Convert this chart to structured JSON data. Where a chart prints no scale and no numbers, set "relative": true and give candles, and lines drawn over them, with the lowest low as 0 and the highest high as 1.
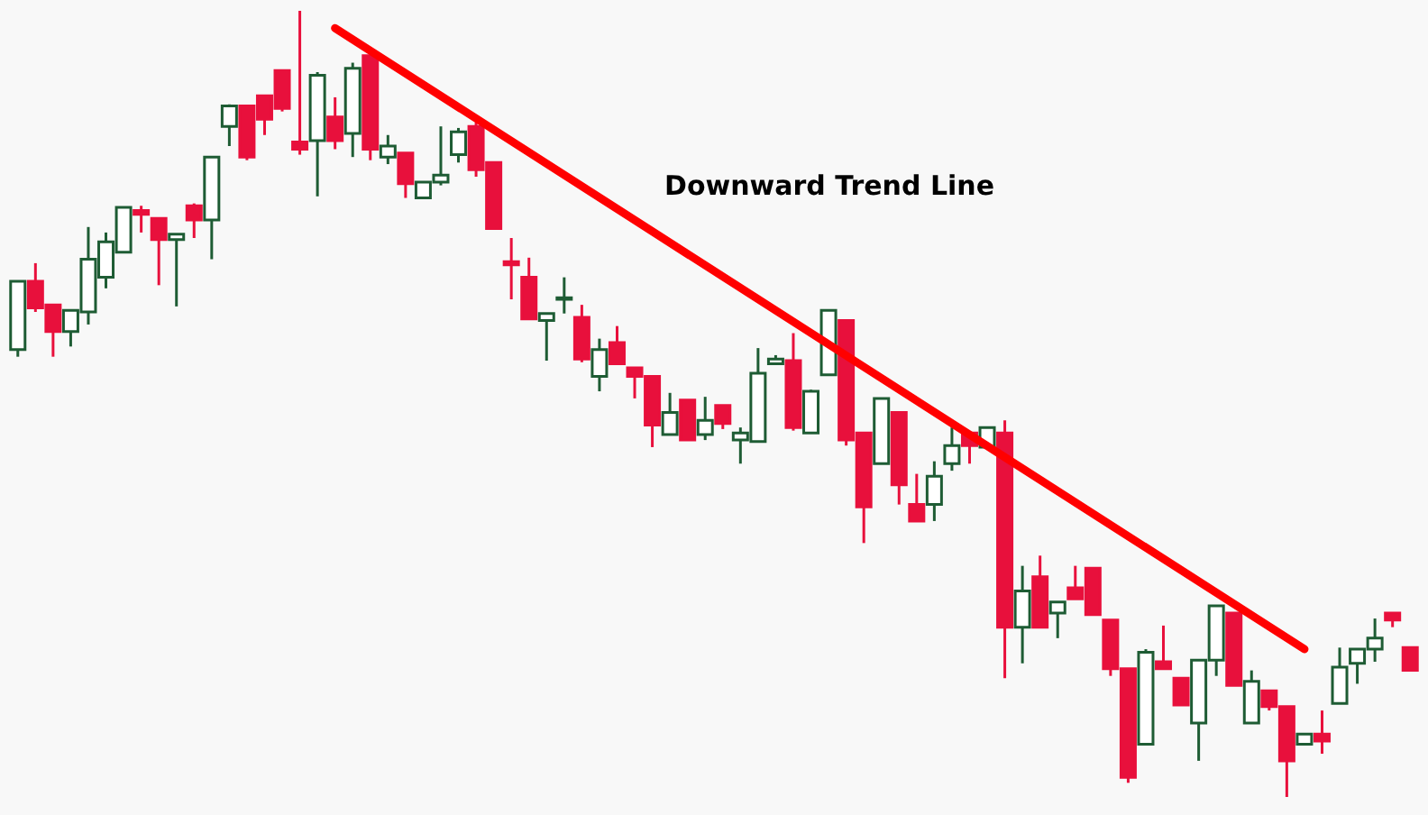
{
  "chart_data": {
    "type": "candlestick",
    "relative": true,
    "categories": [
      null,
      null,
      null,
      null,
      null,
      null,
      null,
      null,
      null,
      null,
      null,
      null,
      null,
      null,
      null,
      null,
      null,
      null,
      null,
      null,
      null,
      null,
      null,
      null,
      null,
      null,
      null,
      null,
      null,
      null,
      null,
      null,
      null,
      null,
      null,
      null,
      null,
      null,
      null,
      null,
      null,
      null,
      null,
      null,
      null,
      null,
      null,
      null,
      null,
      null,
      null,
      null,
      null,
      null,
      null,
      null,
      null,
      null,
      null,
      null,
      null,
      null,
      null,
      null,
      null,
      null,
      null,
      null,
      null,
      null,
      null,
      null,
      null,
      null,
      null,
      null,
      null,
      null,
      null,
      null
    ],
    "ohlc": [
      [
        0.569,
        0.656,
        0.56,
        0.656
      ],
      [
        0.656,
        0.679,
        0.617,
        0.622
      ],
      [
        0.626,
        0.626,
        0.56,
        0.592
      ],
      [
        0.592,
        0.619,
        0.573,
        0.619
      ],
      [
        0.617,
        0.725,
        0.601,
        0.684
      ],
      [
        0.661,
        0.718,
        0.647,
        0.706
      ],
      [
        0.693,
        0.75,
        0.693,
        0.75
      ],
      [
        0.746,
        0.752,
        0.718,
        0.741
      ],
      [
        0.736,
        0.736,
        0.651,
        0.709
      ],
      [
        0.709,
        0.716,
        0.624,
        0.716
      ],
      [
        0.752,
        0.755,
        0.711,
        0.734
      ],
      [
        0.734,
        0.814,
        0.684,
        0.814
      ],
      [
        0.853,
        0.881,
        0.828,
        0.879
      ],
      [
        0.879,
        0.879,
        0.81,
        0.814
      ],
      [
        0.892,
        0.892,
        0.842,
        0.862
      ],
      [
        0.924,
        0.924,
        0.872,
        0.876
      ],
      [
        0.833,
        1.0,
        0.817,
        0.824
      ],
      [
        0.835,
        0.922,
        0.764,
        0.918
      ],
      [
        0.865,
        0.89,
        0.824,
        0.835
      ],
      [
        0.844,
        0.934,
        0.814,
        0.927
      ],
      [
        0.943,
        0.943,
        0.81,
        0.824
      ],
      [
        0.814,
        0.842,
        0.805,
        0.828
      ],
      [
        0.819,
        0.819,
        0.762,
        0.78
      ],
      [
        0.762,
        0.782,
        0.762,
        0.782
      ],
      [
        0.782,
        0.853,
        0.778,
        0.791
      ],
      [
        0.817,
        0.851,
        0.807,
        0.846
      ],
      [
        0.853,
        0.858,
        0.789,
        0.798
      ],
      [
        0.807,
        0.807,
        0.723,
        0.723
      ],
      [
        0.681,
        0.711,
        0.633,
        0.677
      ],
      [
        0.661,
        0.686,
        0.608,
        0.608
      ],
      [
        0.606,
        0.615,
        0.555,
        0.615
      ],
      [
        0.633,
        0.661,
        0.615,
        0.635
      ],
      [
        0.61,
        0.626,
        0.553,
        0.557
      ],
      [
        0.535,
        0.583,
        0.516,
        0.569
      ],
      [
        0.578,
        0.599,
        0.551,
        0.551
      ],
      [
        0.546,
        0.546,
        0.507,
        0.535
      ],
      [
        0.535,
        0.535,
        0.445,
        0.473
      ],
      [
        0.461,
        0.514,
        0.461,
        0.489
      ],
      [
        0.505,
        0.505,
        0.454,
        0.454
      ],
      [
        0.461,
        0.509,
        0.454,
        0.479
      ],
      [
        0.498,
        0.498,
        0.468,
        0.475
      ],
      [
        0.454,
        0.47,
        0.424,
        0.463
      ],
      [
        0.452,
        0.571,
        0.452,
        0.539
      ],
      [
        0.551,
        0.562,
        0.551,
        0.557
      ],
      [
        0.555,
        0.59,
        0.466,
        0.47
      ],
      [
        0.463,
        0.518,
        0.463,
        0.516
      ],
      [
        0.537,
        0.619,
        0.537,
        0.619
      ],
      [
        0.606,
        0.606,
        0.447,
        0.454
      ],
      [
        0.463,
        0.463,
        0.323,
        0.369
      ],
      [
        0.424,
        0.507,
        0.424,
        0.507
      ],
      [
        0.489,
        0.489,
        0.372,
        0.397
      ],
      [
        0.372,
        0.411,
        0.351,
        0.351
      ],
      [
        0.372,
        0.427,
        0.351,
        0.408
      ],
      [
        0.424,
        0.47,
        0.415,
        0.447
      ],
      [
        0.463,
        0.463,
        0.424,
        0.447
      ],
      [
        0.445,
        0.47,
        0.445,
        0.47
      ],
      [
        0.463,
        0.479,
        0.151,
        0.216
      ],
      [
        0.216,
        0.294,
        0.17,
        0.262
      ],
      [
        0.28,
        0.307,
        0.216,
        0.216
      ],
      [
        0.234,
        0.248,
        0.202,
        0.248
      ],
      [
        0.266,
        0.294,
        0.252,
        0.252
      ],
      [
        0.291,
        0.291,
        0.232,
        0.232
      ],
      [
        0.225,
        0.225,
        0.154,
        0.163
      ],
      [
        0.163,
        0.163,
        0.018,
        0.025
      ],
      [
        0.067,
        0.188,
        0.067,
        0.184
      ],
      [
        0.172,
        0.218,
        0.163,
        0.163
      ],
      [
        0.151,
        0.151,
        0.117,
        0.117
      ],
      [
        0.094,
        0.174,
        0.046,
        0.174
      ],
      [
        0.174,
        0.243,
        0.154,
        0.243
      ],
      [
        0.234,
        0.234,
        0.142,
        0.142
      ],
      [
        0.094,
        0.161,
        0.094,
        0.147
      ],
      [
        0.135,
        0.135,
        0.11,
        0.115
      ],
      [
        0.115,
        0.115,
        0.0,
        0.046
      ],
      [
        0.067,
        0.08,
        0.067,
        0.08
      ],
      [
        0.08,
        0.11,
        0.055,
        0.071
      ],
      [
        0.119,
        0.19,
        0.119,
        0.165
      ],
      [
        0.17,
        0.188,
        0.144,
        0.188
      ],
      [
        0.188,
        0.227,
        0.172,
        0.202
      ],
      [
        0.234,
        0.234,
        0.216,
        0.225
      ],
      [
        0.19,
        0.19,
        0.161,
        0.161
      ]
    ],
    "colors": [
      "#1e5c34",
      "#e8103c",
      "#e8103c",
      "#1e5c34",
      "#1e5c34",
      "#1e5c34",
      "#1e5c34",
      "#e8103c",
      "#e8103c",
      "#1e5c34",
      "#e8103c",
      "#1e5c34",
      "#1e5c34",
      "#e8103c",
      "#e8103c",
      "#e8103c",
      "#e8103c",
      "#1e5c34",
      "#e8103c",
      "#1e5c34",
      "#e8103c",
      "#1e5c34",
      "#e8103c",
      "#1e5c34",
      "#1e5c34",
      "#1e5c34",
      "#e8103c",
      "#e8103c",
      "#e8103c",
      "#e8103c",
      "#1e5c34",
      "#1e5c34",
      "#e8103c",
      "#1e5c34",
      "#e8103c",
      "#e8103c",
      "#e8103c",
      "#1e5c34",
      "#e8103c",
      "#1e5c34",
      "#e8103c",
      "#1e5c34",
      "#1e5c34",
      "#1e5c34",
      "#e8103c",
      "#1e5c34",
      "#1e5c34",
      "#e8103c",
      "#e8103c",
      "#1e5c34",
      "#e8103c",
      "#e8103c",
      "#1e5c34",
      "#1e5c34",
      "#e8103c",
      "#1e5c34",
      "#e8103c",
      "#1e5c34",
      "#e8103c",
      "#1e5c34",
      "#e8103c",
      "#e8103c",
      "#e8103c",
      "#e8103c",
      "#1e5c34",
      "#e8103c",
      "#e8103c",
      "#1e5c34",
      "#1e5c34",
      "#e8103c",
      "#1e5c34",
      "#e8103c",
      "#e8103c",
      "#1e5c34",
      "#e8103c",
      "#1e5c34",
      "#1e5c34",
      "#1e5c34",
      "#e8103c",
      "#e8103c"
    ],
    "series": [
      {
        "type": "line",
        "values": [
          null,
          null,
          null,
          null,
          null,
          null,
          null,
          null,
          null,
          null,
          null,
          null,
          null,
          null,
          null,
          null,
          null,
          null,
          0.978,
          null,
          null,
          null,
          null,
          null,
          null,
          null,
          null,
          null,
          null,
          null,
          null,
          null,
          null,
          null,
          null,
          null,
          null,
          null,
          null,
          null,
          null,
          null,
          null,
          null,
          null,
          null,
          null,
          null,
          null,
          null,
          null,
          null,
          null,
          null,
          null,
          null,
          null,
          null,
          null,
          null,
          null,
          null,
          null,
          null,
          null,
          null,
          null,
          null,
          null,
          null,
          null,
          null,
          null,
          0.188,
          null,
          null,
          null,
          null,
          null,
          null
        ],
        "color": "#ff0000"
      }
    ],
    "annotations": [
      "Downward Trend Line"
    ]
  }
}
